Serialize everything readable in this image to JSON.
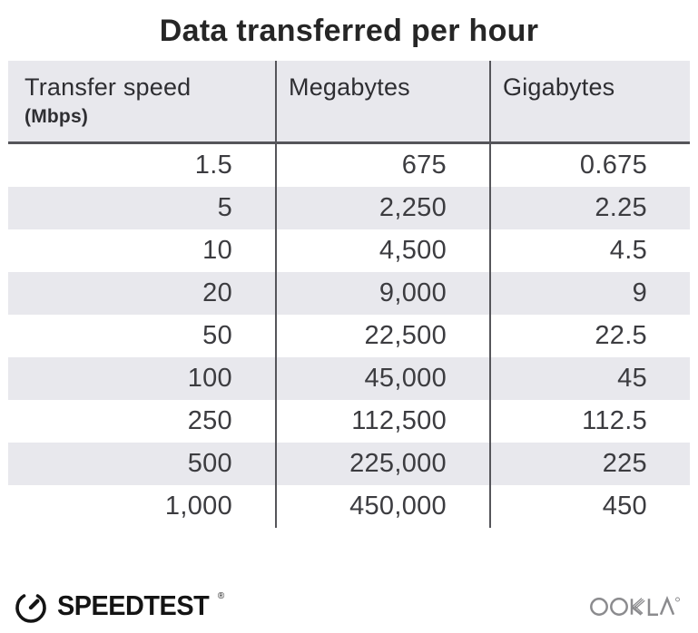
{
  "title": "Data transferred per hour",
  "table": {
    "headers": [
      {
        "label": "Transfer speed",
        "sublabel": "(Mbps)"
      },
      {
        "label": "Megabytes"
      },
      {
        "label": "Gigabytes"
      }
    ],
    "rows": [
      [
        "1.5",
        "675",
        "0.675"
      ],
      [
        "5",
        "2,250",
        "2.25"
      ],
      [
        "10",
        "4,500",
        "4.5"
      ],
      [
        "20",
        "9,000",
        "9"
      ],
      [
        "50",
        "22,500",
        "22.5"
      ],
      [
        "100",
        "45,000",
        "45"
      ],
      [
        "250",
        "112,500",
        "112.5"
      ],
      [
        "500",
        "225,000",
        "225"
      ],
      [
        "1,000",
        "450,000",
        "450"
      ]
    ]
  },
  "chart_data": {
    "type": "table",
    "title": "Data transferred per hour",
    "columns": [
      "Transfer speed (Mbps)",
      "Megabytes",
      "Gigabytes"
    ],
    "rows": [
      [
        1.5,
        675,
        0.675
      ],
      [
        5,
        2250,
        2.25
      ],
      [
        10,
        4500,
        4.5
      ],
      [
        20,
        9000,
        9
      ],
      [
        50,
        22500,
        22.5
      ],
      [
        100,
        45000,
        45
      ],
      [
        250,
        112500,
        112.5
      ],
      [
        500,
        225000,
        225
      ],
      [
        1000,
        450000,
        450
      ]
    ]
  },
  "footer": {
    "speedtest_label": "SPEEDTEST",
    "speedtest_trademark": "®",
    "ookla_label": "OOKLA"
  },
  "colors": {
    "row_alt_bg": "#e8e8ed",
    "divider": "#55555a",
    "title_text": "#262626",
    "number_text": "#3c3c40",
    "logo_black": "#141414",
    "ookla_gray": "#8b8b8e"
  }
}
